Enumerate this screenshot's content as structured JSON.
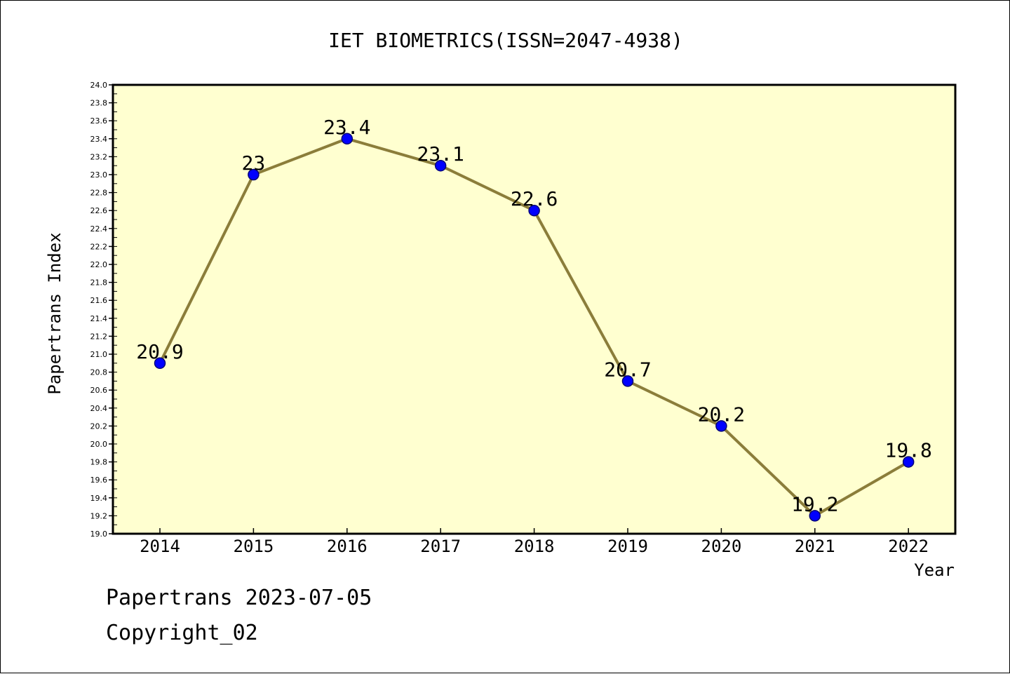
{
  "chart_data": {
    "type": "line",
    "title": "IET BIOMETRICS(ISSN=2047-4938)",
    "xlabel": "Year",
    "ylabel": "Papertrans Index",
    "categories": [
      "2014",
      "2015",
      "2016",
      "2017",
      "2018",
      "2019",
      "2020",
      "2021",
      "2022"
    ],
    "values": [
      20.9,
      23,
      23.4,
      23.1,
      22.6,
      20.7,
      20.2,
      19.2,
      19.8
    ],
    "data_labels": [
      "20.9",
      "23",
      "23.4",
      "23.1",
      "22.6",
      "20.7",
      "20.2",
      "19.2",
      "19.8"
    ],
    "ylim": [
      19.0,
      24.0
    ],
    "yticks": [
      "19.0",
      "19.2",
      "19.4",
      "19.6",
      "19.8",
      "20.0",
      "20.2",
      "20.4",
      "20.6",
      "20.8",
      "21.0",
      "21.2",
      "21.4",
      "21.6",
      "21.8",
      "22.0",
      "22.2",
      "22.4",
      "22.6",
      "22.8",
      "23.0",
      "23.2",
      "23.4",
      "23.6",
      "23.8",
      "24.0"
    ],
    "grid": false,
    "colors": {
      "plot_background": "#ffffd0",
      "line": "#8b7d3a",
      "marker": "#0000ff",
      "marker_edge": "#00007a"
    }
  },
  "footer": {
    "line1": "Papertrans 2023-07-05",
    "line2": "Copyright_02"
  }
}
